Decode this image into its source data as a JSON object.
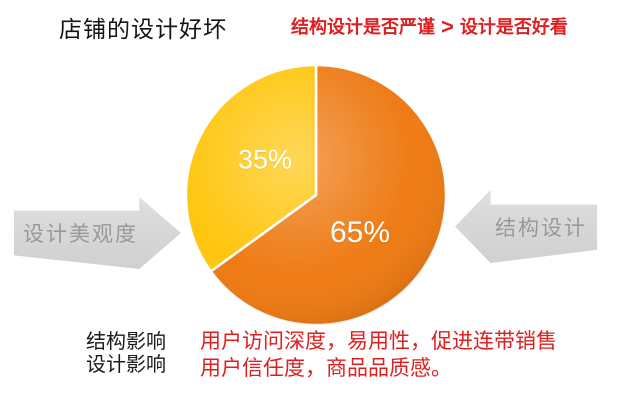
{
  "header": {
    "title": "店铺的设计好坏",
    "comparison": {
      "left": "结构设计是否严谨",
      "operator": ">",
      "right": "设计是否好看"
    }
  },
  "chart_data": {
    "type": "pie",
    "title": "店铺的设计好坏",
    "start_angle_deg": 0,
    "direction": "clockwise",
    "legend_position": "none",
    "label_color": "#ffffff",
    "slices": [
      {
        "label": "结构设计",
        "value": 65,
        "display": "65%",
        "color": "#ee7b15"
      },
      {
        "label": "设计美观度",
        "value": 35,
        "display": "35%",
        "color": "#ffc60f"
      }
    ]
  },
  "arrows": {
    "left": {
      "label": "设计美观度",
      "direction": "right",
      "fill": "#d8d8d8",
      "text_color": "#999999"
    },
    "right": {
      "label": "结构设计",
      "direction": "left",
      "fill": "#d8d8d8",
      "text_color": "#999999"
    }
  },
  "footer": {
    "row_labels": [
      "结构影响",
      "设计影响"
    ],
    "lines": [
      "用户访问深度，易用性，促进连带销售",
      "用户信任度，商品品质感。"
    ]
  },
  "colors": {
    "accent_red": "#df1f1f",
    "text_black": "#141414",
    "arrow_gray": "#d8d8d8",
    "pie_orange": "#ee7b15",
    "pie_yellow": "#ffc60f",
    "background": "#ffffff"
  }
}
